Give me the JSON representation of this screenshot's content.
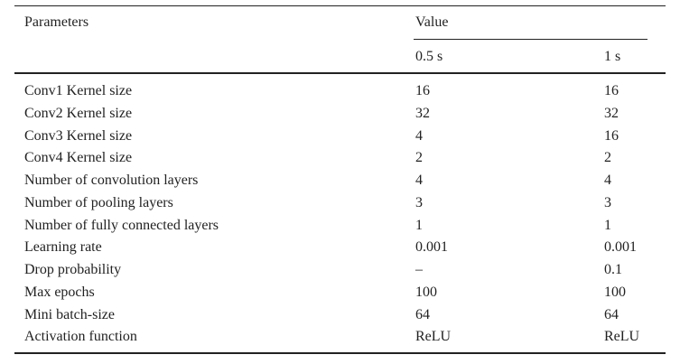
{
  "table": {
    "header": {
      "parameters": "Parameters",
      "value": "Value",
      "columns": [
        "0.5 s",
        "1 s"
      ]
    },
    "rows": [
      [
        "Conv1 Kernel size",
        "16",
        "16"
      ],
      [
        "Conv2 Kernel size",
        "32",
        "32"
      ],
      [
        "Conv3 Kernel size",
        "4",
        "16"
      ],
      [
        "Conv4 Kernel size",
        "2",
        "2"
      ],
      [
        "Number of convolution layers",
        "4",
        "4"
      ],
      [
        "Number of pooling layers",
        "3",
        "3"
      ],
      [
        "Number of fully connected layers",
        "1",
        "1"
      ],
      [
        "Learning rate",
        "0.001",
        "0.001"
      ],
      [
        "Drop probability",
        "–",
        "0.1"
      ],
      [
        "Max epochs",
        "100",
        "100"
      ],
      [
        "Mini batch-size",
        "64",
        "64"
      ],
      [
        "Activation function",
        "ReLU",
        "ReLU"
      ]
    ]
  }
}
